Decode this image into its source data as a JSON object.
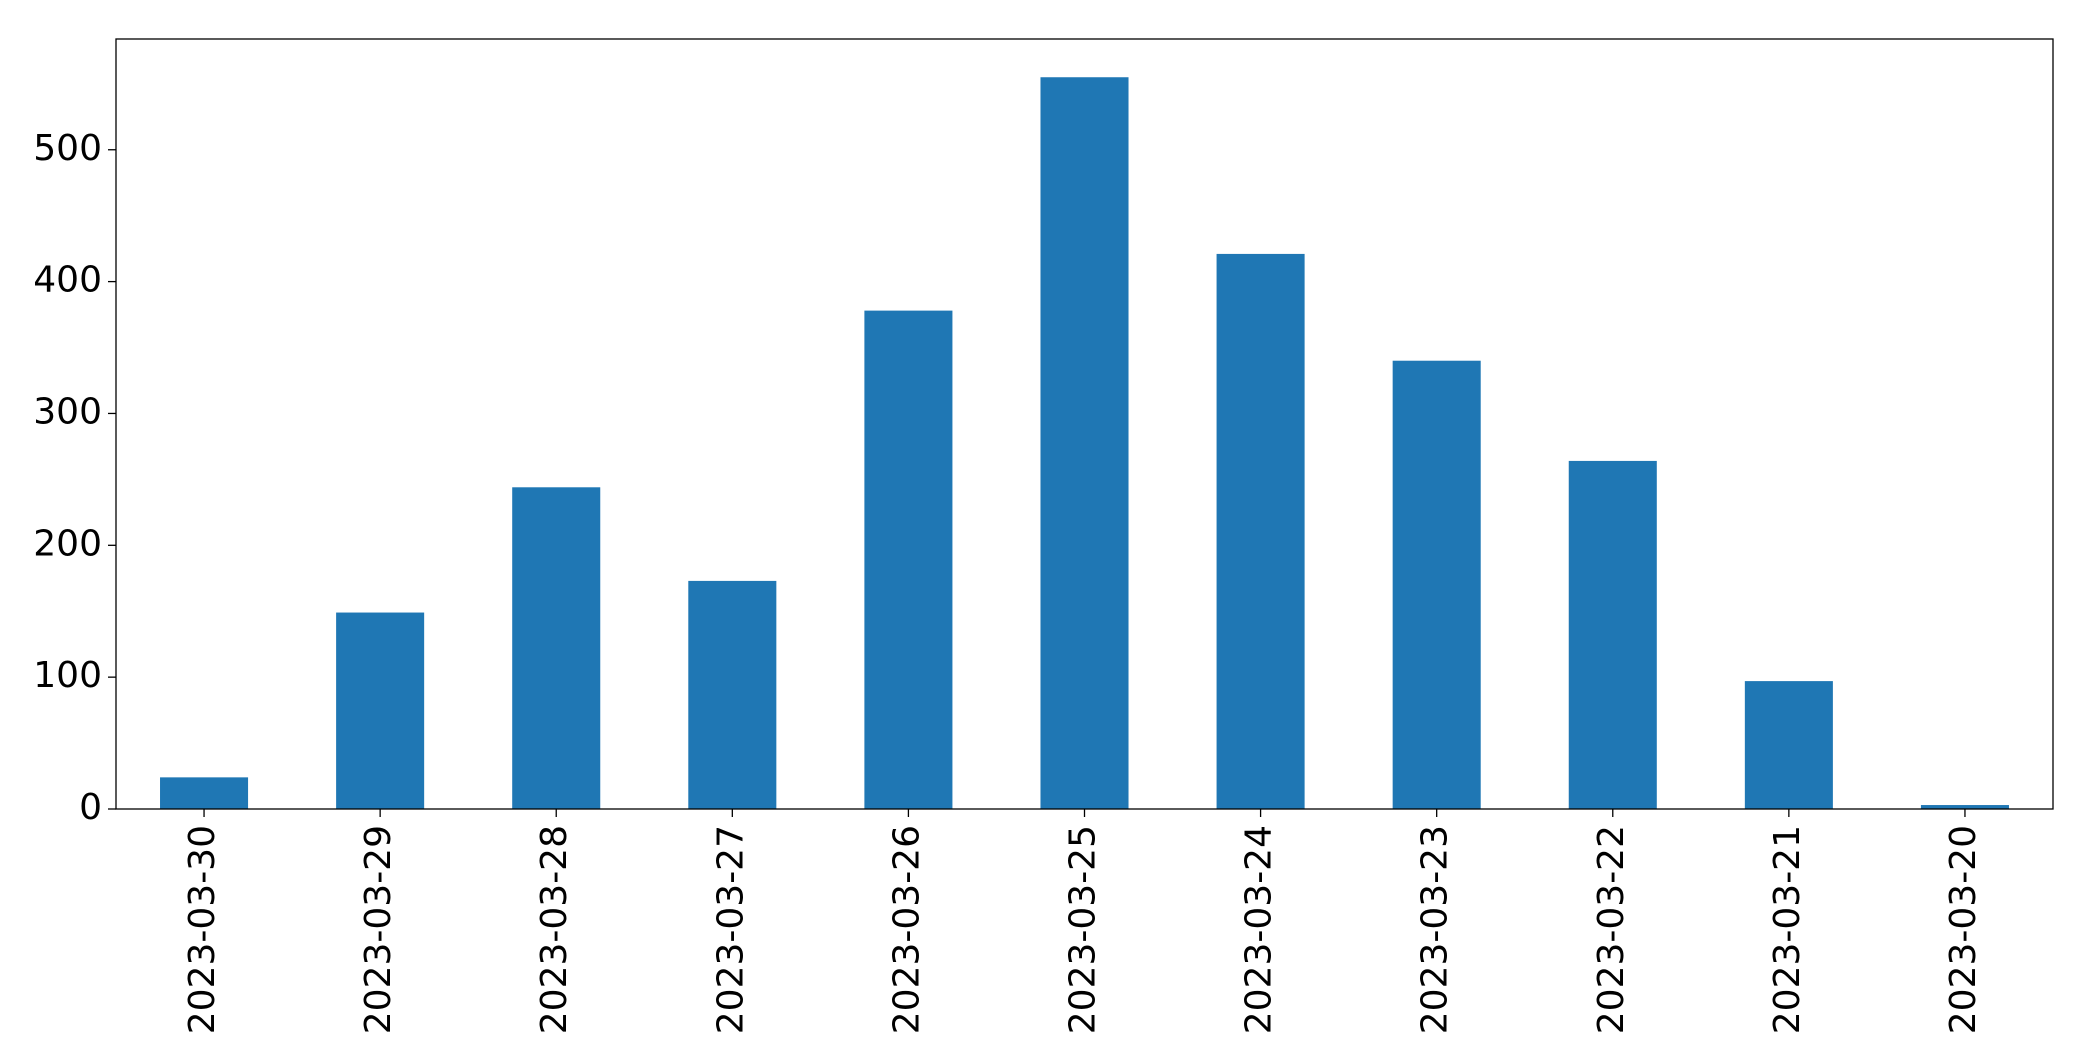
{
  "chart_data": {
    "type": "bar",
    "categories": [
      "2023-03-30",
      "2023-03-29",
      "2023-03-28",
      "2023-03-27",
      "2023-03-26",
      "2023-03-25",
      "2023-03-24",
      "2023-03-23",
      "2023-03-22",
      "2023-03-21",
      "2023-03-20"
    ],
    "values": [
      24,
      149,
      244,
      173,
      378,
      555,
      421,
      340,
      264,
      97,
      3
    ],
    "color": "#1f77b4",
    "ylim": [
      0,
      584
    ],
    "yticks": [
      0,
      100,
      200,
      300,
      400,
      500
    ],
    "grid": false
  }
}
